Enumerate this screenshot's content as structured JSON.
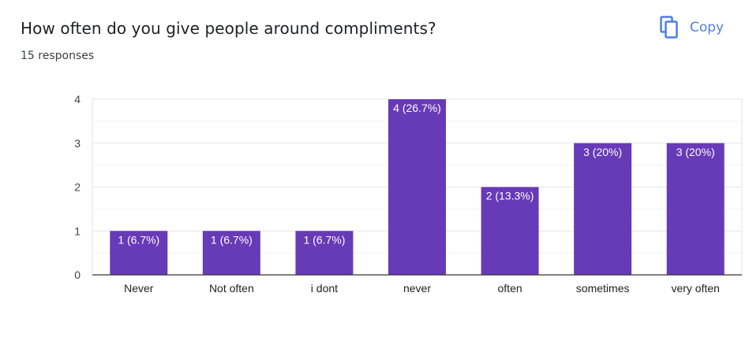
{
  "header": {
    "title": "How often do you give people around compliments?",
    "subtitle": "15 responses",
    "copy_label": "Copy",
    "copy_icon": "copy-icon"
  },
  "colors": {
    "bar": "#673ab7",
    "accent": "#4f7fdc",
    "grid": "#e6e6e6",
    "axis": "#333333"
  },
  "chart_data": {
    "type": "bar",
    "categories": [
      "Never",
      "Not often",
      "i dont",
      "never",
      "often",
      "sometimes",
      "very often"
    ],
    "values": [
      1,
      1,
      1,
      4,
      2,
      3,
      3
    ],
    "data_labels": [
      "1 (6.7%)",
      "1 (6.7%)",
      "1 (6.7%)",
      "4 (26.7%)",
      "2 (13.3%)",
      "3 (20%)",
      "3 (20%)"
    ],
    "title": "How often do you give people around compliments?",
    "xlabel": "",
    "ylabel": "",
    "ylim": [
      0,
      4
    ],
    "yticks": [
      0,
      1,
      2,
      3,
      4
    ],
    "grid": true
  }
}
